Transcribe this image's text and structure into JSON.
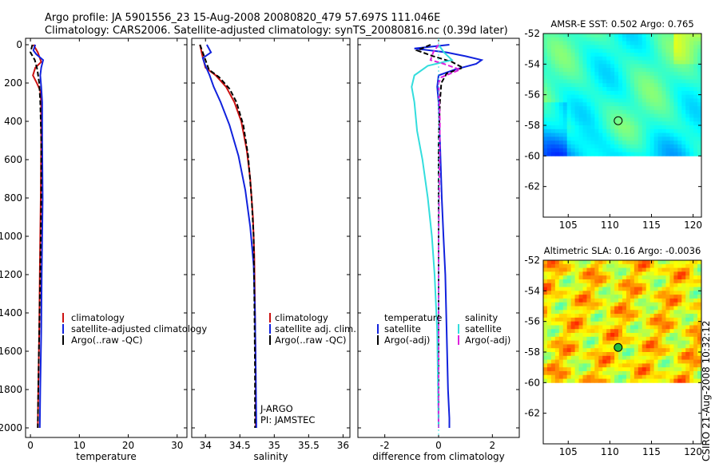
{
  "header": {
    "line1": "Argo profile: JA 5901556_23 15-Aug-2008 20080820_479 57.697S 111.046E",
    "line2": "Climatology: CARS2006. Satellite-adjusted climatology: synTS_20080816.nc (0.39d later)"
  },
  "side_text": "CSIRO 21-Aug-2008 10:32:12",
  "colors": {
    "clim": "#cc1111",
    "sat": "#1122dd",
    "argo": "#000000",
    "cyan": "#33dddd",
    "magenta": "#dd22dd"
  },
  "chart_data": [
    {
      "type": "line",
      "id": "temperature",
      "xlabel": "temperature",
      "ylabel": "",
      "ylim": [
        0,
        2050
      ],
      "xlim": [
        -1,
        32
      ],
      "y_reversed": true,
      "xticks": [
        0,
        10,
        20,
        30
      ],
      "yticks": [
        0,
        200,
        400,
        600,
        800,
        1000,
        1200,
        1400,
        1600,
        1800,
        2000
      ],
      "legend": [
        "climatology",
        "satellite-adjusted climatology",
        "Argo(..raw -QC)"
      ],
      "series": [
        {
          "name": "climatology",
          "color": "clim",
          "style": "solid",
          "x": [
            0.6,
            1.5,
            2.2,
            1.0,
            0.5,
            1.3,
            2.0,
            2.2,
            2.2,
            2.1,
            2.0,
            1.9,
            1.8,
            1.6,
            1.5
          ],
          "y": [
            0,
            40,
            90,
            120,
            160,
            200,
            240,
            300,
            500,
            800,
            1000,
            1200,
            1500,
            1800,
            2000
          ]
        },
        {
          "name": "satellite-adjusted climatology",
          "color": "sat",
          "style": "solid",
          "x": [
            1.0,
            0.6,
            1.2,
            2.6,
            2.2,
            2.0,
            2.2,
            2.4,
            2.4,
            2.5,
            2.4,
            2.3,
            2.2,
            2.0,
            1.9
          ],
          "y": [
            0,
            30,
            50,
            80,
            120,
            160,
            220,
            300,
            500,
            800,
            1000,
            1200,
            1500,
            1800,
            2000
          ]
        },
        {
          "name": "Argo(..raw -QC)",
          "color": "argo",
          "style": "dash",
          "x": [
            0.4,
            0.0,
            0.9,
            1.4,
            1.8,
            2.0,
            2.2,
            2.2,
            2.1,
            2.0,
            1.8,
            1.6,
            1.5
          ],
          "y": [
            0,
            40,
            80,
            130,
            200,
            300,
            500,
            800,
            1000,
            1200,
            1500,
            1800,
            2000
          ]
        }
      ],
      "annotations": []
    },
    {
      "type": "line",
      "id": "salinity",
      "xlabel": "salinity",
      "ylabel": "",
      "ylim": [
        0,
        2050
      ],
      "xlim": [
        33.8,
        36.1
      ],
      "y_reversed": true,
      "xticks": [
        34,
        34.5,
        35,
        35.5,
        36
      ],
      "yticks": [
        0,
        200,
        400,
        600,
        800,
        1000,
        1200,
        1400,
        1600,
        1800,
        2000
      ],
      "legend": [
        "climatology",
        "satellite adj. clim.",
        "Argo(..raw -QC)"
      ],
      "series": [
        {
          "name": "climatology",
          "color": "clim",
          "style": "solid",
          "x": [
            33.92,
            33.95,
            34.0,
            34.15,
            34.3,
            34.42,
            34.52,
            34.6,
            34.65,
            34.69,
            34.71,
            34.72,
            34.73,
            34.73
          ],
          "y": [
            0,
            50,
            120,
            160,
            220,
            300,
            400,
            550,
            700,
            900,
            1100,
            1400,
            1700,
            2000
          ]
        },
        {
          "name": "satellite adj. clim.",
          "color": "sat",
          "style": "solid",
          "x": [
            34.02,
            34.08,
            33.96,
            34.0,
            34.06,
            34.12,
            34.22,
            34.35,
            34.48,
            34.58,
            34.65,
            34.7,
            34.72,
            34.73,
            34.74
          ],
          "y": [
            0,
            40,
            70,
            110,
            160,
            220,
            300,
            420,
            580,
            760,
            950,
            1150,
            1400,
            1700,
            2000
          ]
        },
        {
          "name": "Argo(..raw -QC)",
          "color": "argo",
          "style": "dash",
          "x": [
            33.92,
            33.96,
            34.0,
            34.05,
            34.2,
            34.35,
            34.45,
            34.55,
            34.62,
            34.67,
            34.7,
            34.71,
            34.72,
            34.72
          ],
          "y": [
            0,
            40,
            80,
            130,
            170,
            230,
            300,
            420,
            580,
            800,
            1000,
            1300,
            1700,
            2000
          ]
        }
      ],
      "annotations": [
        "J-ARGO",
        "PI: JAMSTEC"
      ]
    },
    {
      "type": "line",
      "id": "difference",
      "xlabel": "difference from climatology",
      "ylabel": "",
      "ylim": [
        0,
        2050
      ],
      "xlim": [
        -3,
        3
      ],
      "y_reversed": true,
      "xticks": [
        -2,
        0,
        2
      ],
      "yticks": [
        0,
        200,
        400,
        600,
        800,
        1000,
        1200,
        1400,
        1600,
        1800,
        2000
      ],
      "legend_groups": [
        {
          "title": "temperature",
          "items": [
            "satellite",
            "Argo(-adj)"
          ]
        },
        {
          "title": "salinity",
          "items": [
            "satellite",
            "Argo(-adj)"
          ]
        }
      ],
      "series": [
        {
          "name": "temperature satellite",
          "color": "sat",
          "style": "solid",
          "x": [
            0.4,
            -0.9,
            0.3,
            1.0,
            1.6,
            1.4,
            0.6,
            0.0,
            -0.05,
            0.0,
            0.05,
            0.12,
            0.18,
            0.25,
            0.3,
            0.35,
            0.4,
            0.4
          ],
          "y": [
            0,
            20,
            40,
            60,
            80,
            100,
            130,
            160,
            220,
            300,
            500,
            800,
            1000,
            1200,
            1500,
            1800,
            1950,
            2000
          ]
        },
        {
          "name": "temperature Argo(-adj)",
          "color": "argo",
          "style": "dash",
          "x": [
            -0.3,
            -0.8,
            -0.2,
            0.5,
            0.9,
            0.3,
            0.1,
            0.05,
            0.0,
            0.0,
            0.0,
            0.0
          ],
          "y": [
            0,
            30,
            60,
            90,
            120,
            150,
            200,
            300,
            500,
            1000,
            1500,
            2000
          ]
        },
        {
          "name": "salinity satellite",
          "color": "cyan",
          "style": "solid",
          "x": [
            0.0,
            0.2,
            0.5,
            -0.4,
            -0.9,
            -1.0,
            -0.9,
            -0.8,
            -0.6,
            -0.4,
            -0.25,
            -0.15,
            -0.05,
            0.0
          ],
          "y": [
            0,
            40,
            80,
            110,
            160,
            220,
            300,
            450,
            600,
            800,
            1000,
            1200,
            1500,
            2000
          ]
        },
        {
          "name": "salinity Argo(-adj)",
          "color": "magenta",
          "style": "dash",
          "x": [
            0.0,
            -0.2,
            -0.3,
            0.2,
            0.8,
            0.1,
            0.0,
            0.05,
            0.0,
            0.0
          ],
          "y": [
            0,
            40,
            80,
            100,
            130,
            170,
            200,
            400,
            1000,
            2000
          ]
        }
      ]
    },
    {
      "type": "heatmap",
      "id": "sst",
      "title": "AMSR-E SST: 0.502 Argo: 0.765",
      "xlim": [
        102,
        121
      ],
      "ylim": [
        -64,
        -52
      ],
      "xticks": [
        105,
        110,
        115,
        120
      ],
      "yticks": [
        -52,
        -54,
        -56,
        -58,
        -60,
        -62
      ],
      "data_extent": {
        "lon": [
          102,
          121
        ],
        "lat": [
          -60,
          -52
        ]
      },
      "argo_point": [
        111.0,
        -57.7
      ]
    },
    {
      "type": "heatmap",
      "id": "sla",
      "title": "Altimetric SLA: 0.16 Argo: -0.0036",
      "xlim": [
        102,
        121
      ],
      "ylim": [
        -64,
        -52
      ],
      "xticks": [
        105,
        110,
        115,
        120
      ],
      "yticks": [
        -52,
        -54,
        -56,
        -58,
        -60,
        -62
      ],
      "data_extent": {
        "lon": [
          102,
          121
        ],
        "lat": [
          -60,
          -52
        ]
      },
      "argo_point": [
        111.0,
        -57.7
      ]
    }
  ]
}
